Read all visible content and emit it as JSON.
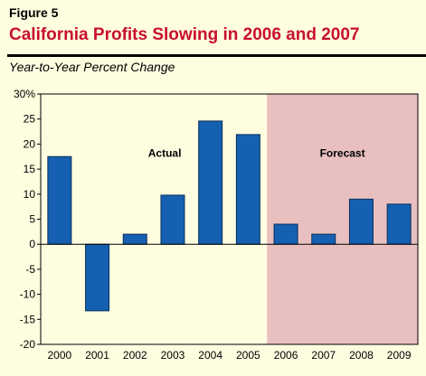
{
  "figure": {
    "label": "Figure 5",
    "title": "California Profits Slowing in 2006 and 2007",
    "subtitle": "Year-to-Year Percent Change"
  },
  "colors": {
    "bar": "#1560b0",
    "bar_edge": "#0a2f5c",
    "forecast_bg": "#e9c0c0",
    "plot_bg": "#fffde0",
    "title": "#c8102e"
  },
  "chart_data": {
    "type": "bar",
    "categories": [
      "2000",
      "2001",
      "2002",
      "2003",
      "2004",
      "2005",
      "2006",
      "2007",
      "2008",
      "2009"
    ],
    "values": [
      17.5,
      -13.3,
      2,
      9.8,
      24.6,
      21.9,
      4,
      2,
      9,
      8
    ],
    "ylim": [
      -20,
      30
    ],
    "yticks": [
      30,
      25,
      20,
      15,
      10,
      5,
      0,
      -5,
      -10,
      -15,
      -20
    ],
    "ytick_labels": [
      "30%",
      "25",
      "20",
      "15",
      "10",
      "5",
      "0",
      "-5",
      "-10",
      "-15",
      "-20"
    ],
    "forecast_start": "2006",
    "annotations": {
      "actual": "Actual",
      "forecast": "Forecast"
    },
    "grid": false,
    "legend": "none"
  }
}
